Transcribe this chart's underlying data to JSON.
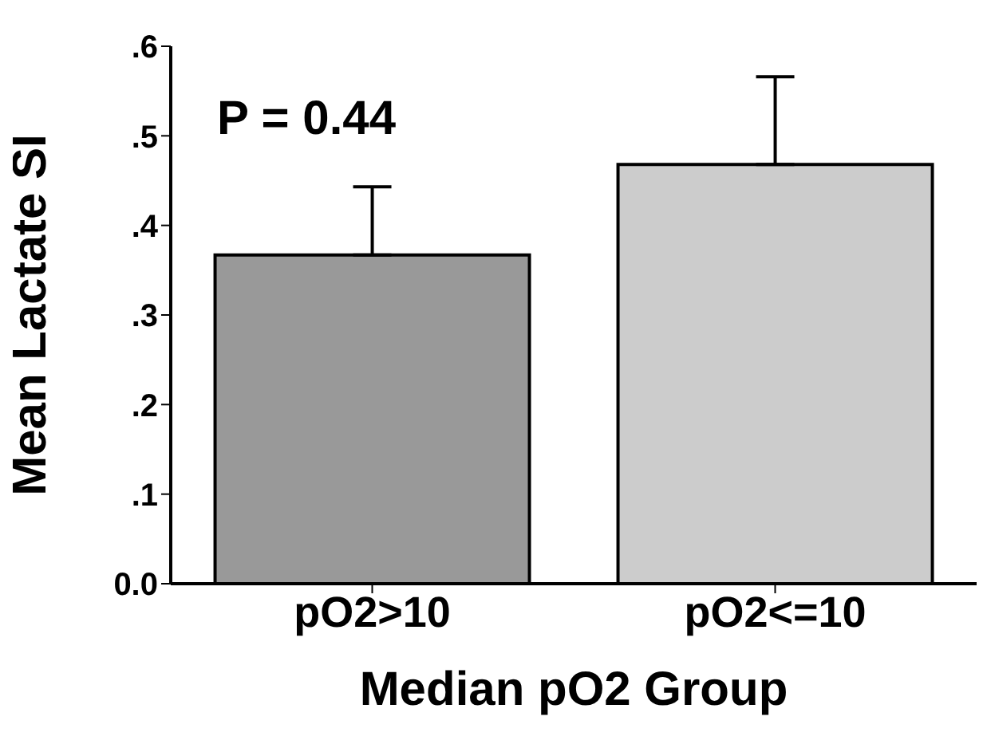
{
  "chart_data": {
    "type": "bar",
    "xlabel": "Median pO2 Group",
    "ylabel": "Mean Lactate SI",
    "categories": [
      "pO2>10",
      "pO2<=10"
    ],
    "values": [
      0.367,
      0.468
    ],
    "colors": [
      "#999999",
      "#cccccc"
    ],
    "errors": [
      [
        0.367,
        0.443
      ],
      [
        0.468,
        0.566
      ]
    ],
    "ylim": [
      0,
      0.6
    ],
    "yticks": [
      {
        "value": 0,
        "label": "0.0"
      },
      {
        "value": 0.1,
        "label": ".1"
      },
      {
        "value": 0.2,
        "label": ".2"
      },
      {
        "value": 0.3,
        "label": ".3"
      },
      {
        "value": 0.4,
        "label": ".4"
      },
      {
        "value": 0.5,
        "label": ".5"
      },
      {
        "value": 0.6,
        "label": ".6"
      }
    ],
    "annotations": [
      "P = 0.44"
    ],
    "grid": false,
    "legend": false
  }
}
